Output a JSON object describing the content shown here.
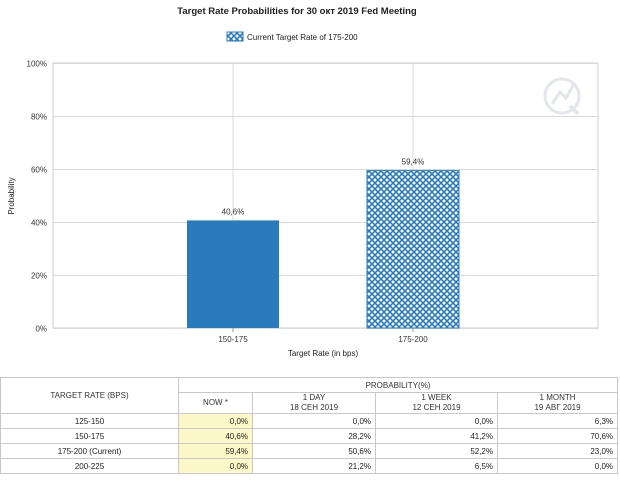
{
  "chart_data": {
    "type": "bar",
    "title": "Target Rate Probabilities for 30 окт 2019 Fed Meeting",
    "legend": {
      "label": "Current Target Rate of 175-200",
      "placement": "top-center"
    },
    "xlabel": "Target Rate (in bps)",
    "ylabel": "Probability",
    "categories": [
      "150-175",
      "175-200"
    ],
    "values": [
      40.6,
      59.4
    ],
    "value_labels": [
      "40,6%",
      "59,4%"
    ],
    "ylim": [
      0,
      100
    ],
    "yticks": [
      0,
      20,
      40,
      60,
      80,
      100
    ],
    "ytick_labels": [
      "0%",
      "20%",
      "40%",
      "60%",
      "80%",
      "100%"
    ],
    "grid": true,
    "colors": {
      "solid_bar": "#2a7bbd",
      "current_bar": "#2a7bbd",
      "current_bar_pattern": "crosshatch",
      "grid": "#d9d9d9"
    },
    "current_category": "175-200"
  },
  "watermark_icon": "quikstrike-logo-icon",
  "table": {
    "col_rate": "TARGET RATE (BPS)",
    "group_header": "PROBABILITY(%)",
    "columns": [
      {
        "line1": "NOW *",
        "line2": ""
      },
      {
        "line1": "1 DAY",
        "line2": "18 СЕН 2019"
      },
      {
        "line1": "1 WEEK",
        "line2": "12 СЕН 2019"
      },
      {
        "line1": "1 MONTH",
        "line2": "19 АВГ 2019"
      }
    ],
    "rows": [
      {
        "rate": "125-150",
        "values": [
          "0,0%",
          "0,0%",
          "0,0%",
          "6,3%"
        ]
      },
      {
        "rate": "150-175",
        "values": [
          "40,6%",
          "28,2%",
          "41,2%",
          "70,6%"
        ]
      },
      {
        "rate": "175-200 (Current)",
        "values": [
          "59,4%",
          "50,6%",
          "52,2%",
          "23,0%"
        ]
      },
      {
        "rate": "200-225",
        "values": [
          "0,0%",
          "21,2%",
          "6,5%",
          "0,0%"
        ]
      }
    ]
  }
}
